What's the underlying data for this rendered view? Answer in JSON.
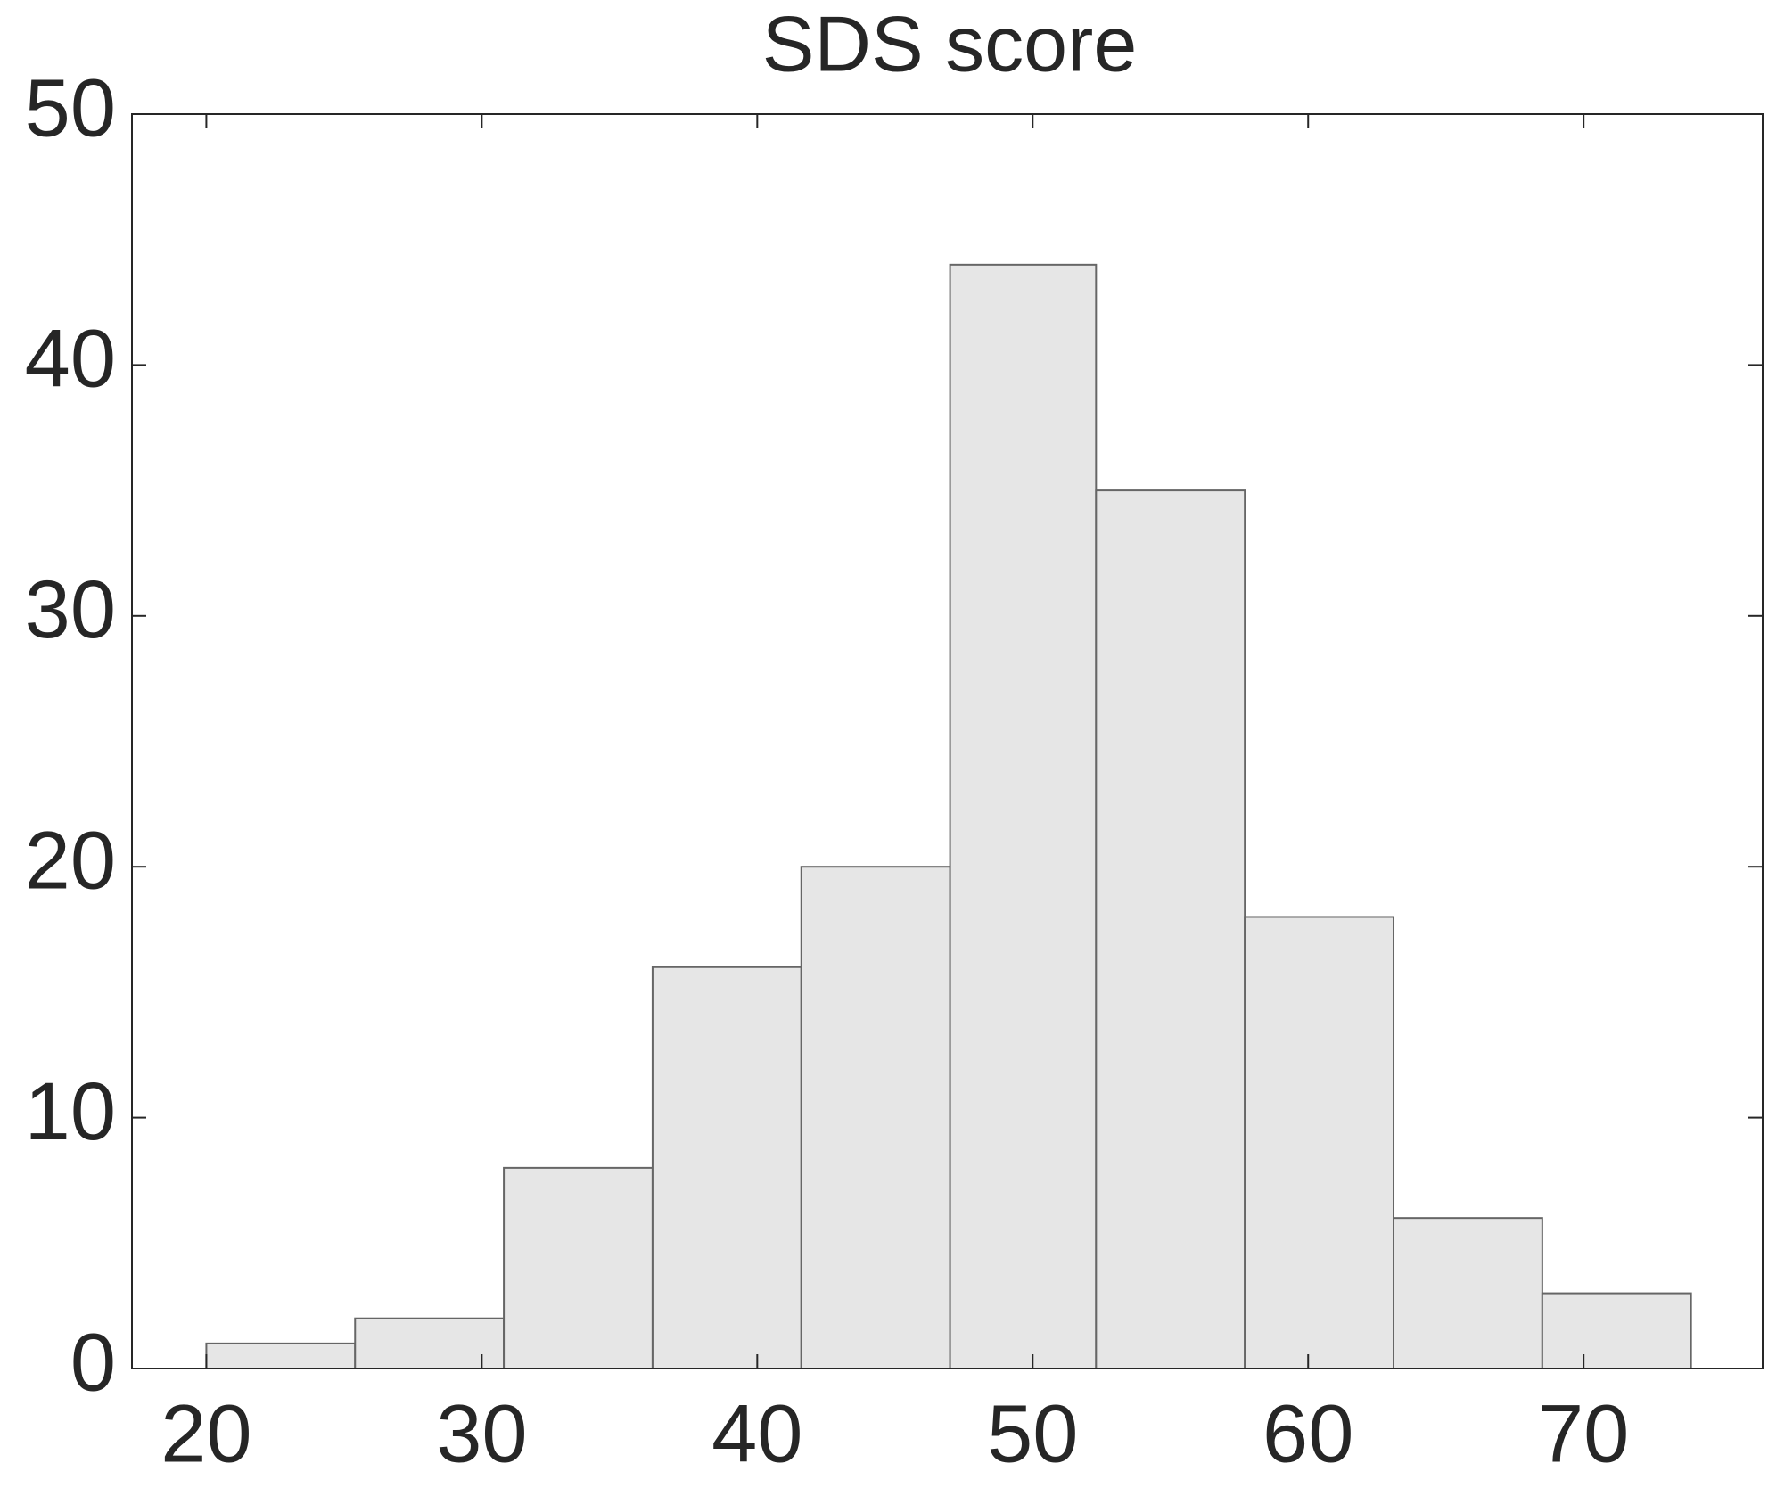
{
  "chart_data": {
    "type": "histogram",
    "title": "SDS score",
    "bins": [
      20,
      25.4,
      30.8,
      36.2,
      41.6,
      47.0,
      52.3,
      57.7,
      63.1,
      68.5,
      73.9
    ],
    "values": [
      1,
      2,
      8,
      16,
      20,
      44,
      35,
      18,
      6,
      3
    ],
    "color": "#e6e6e6",
    "xlim": [
      17.3,
      76.5
    ],
    "xticks": [
      20,
      30,
      40,
      50,
      60,
      70
    ],
    "ylim": [
      0,
      50
    ],
    "yticks": [
      0,
      10,
      20,
      30,
      40,
      50
    ],
    "grid": false
  }
}
